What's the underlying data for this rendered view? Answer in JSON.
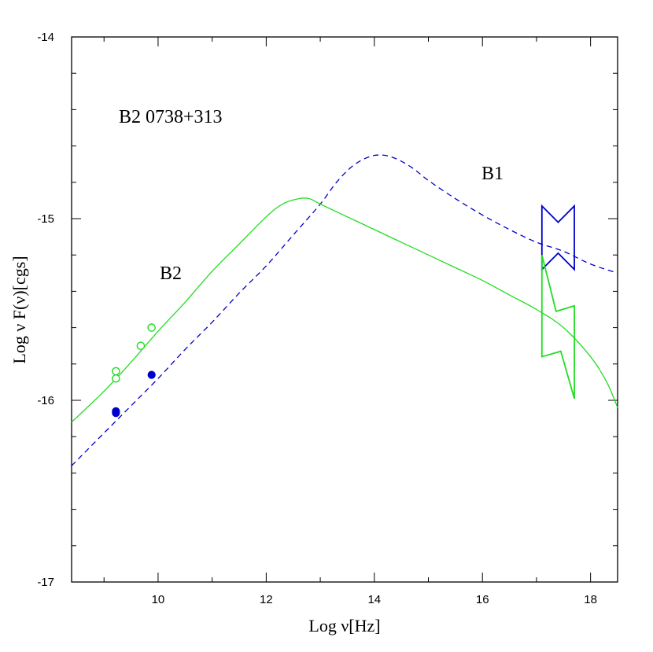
{
  "chart_data": {
    "type": "line",
    "title": "",
    "xlabel": "Log ν[Hz]",
    "ylabel": "Log ν F(ν)[cgs]",
    "xlim": [
      8.4,
      18.5
    ],
    "ylim": [
      -17,
      -14
    ],
    "x_ticks": [
      "10",
      "12",
      "14",
      "16",
      "18"
    ],
    "y_ticks": [
      "-14",
      "-15",
      "-16",
      "-17"
    ],
    "grid": false,
    "legend": "none",
    "annotations": [
      "B2 0738+313",
      "B1",
      "B2"
    ],
    "series": [
      {
        "name": "B1",
        "style": "dashed",
        "color": "#0000cc",
        "x": [
          8.4,
          9.0,
          9.5,
          10.0,
          10.5,
          11.0,
          11.5,
          12.0,
          12.5,
          13.0,
          13.3,
          13.6,
          13.9,
          14.15,
          14.4,
          14.7,
          15.0,
          15.5,
          16.0,
          16.5,
          17.0,
          17.5,
          18.0,
          18.5
        ],
        "y": [
          -16.36,
          -16.18,
          -16.03,
          -15.88,
          -15.72,
          -15.57,
          -15.41,
          -15.26,
          -15.09,
          -14.92,
          -14.8,
          -14.71,
          -14.66,
          -14.65,
          -14.67,
          -14.72,
          -14.79,
          -14.89,
          -14.98,
          -15.06,
          -15.13,
          -15.18,
          -15.25,
          -15.3
        ]
      },
      {
        "name": "B2",
        "style": "solid",
        "color": "#22dd22",
        "x": [
          8.4,
          9.0,
          9.5,
          10.0,
          10.5,
          11.0,
          11.5,
          12.0,
          12.3,
          12.6,
          12.8,
          13.0,
          13.5,
          14.0,
          14.5,
          15.0,
          15.5,
          16.0,
          16.5,
          17.0,
          17.5,
          18.0,
          18.3,
          18.5
        ],
        "y": [
          -16.12,
          -15.95,
          -15.79,
          -15.62,
          -15.46,
          -15.29,
          -15.14,
          -14.99,
          -14.92,
          -14.89,
          -14.89,
          -14.92,
          -14.99,
          -15.06,
          -15.13,
          -15.2,
          -15.27,
          -15.34,
          -15.42,
          -15.5,
          -15.6,
          -15.76,
          -15.9,
          -16.04
        ]
      }
    ],
    "points": [
      {
        "name": "B2",
        "marker": "open-circle",
        "color": "#22dd22",
        "x": [
          9.22,
          9.22,
          9.68,
          9.88
        ],
        "y": [
          -15.84,
          -15.88,
          -15.7,
          -15.6
        ]
      },
      {
        "name": "B1",
        "marker": "filled-circle",
        "color": "#0000cc",
        "x": [
          9.22,
          9.22,
          9.88
        ],
        "y": [
          -16.06,
          -16.07,
          -15.86
        ]
      }
    ],
    "xray_bowties": [
      {
        "name": "B1",
        "color": "#0000cc",
        "x": [
          17.1,
          17.7
        ],
        "y_low": [
          -15.28,
          -15.28
        ],
        "y_high": [
          -14.93,
          -14.93
        ],
        "y_pinch": [
          -15.02,
          -15.19
        ]
      },
      {
        "name": "B2",
        "color": "#22dd22",
        "x_left": 17.1,
        "x_right": 17.7,
        "y_left_range": [
          -15.2,
          -15.76
        ],
        "y_right_range": [
          -15.48,
          -15.99
        ]
      }
    ]
  }
}
